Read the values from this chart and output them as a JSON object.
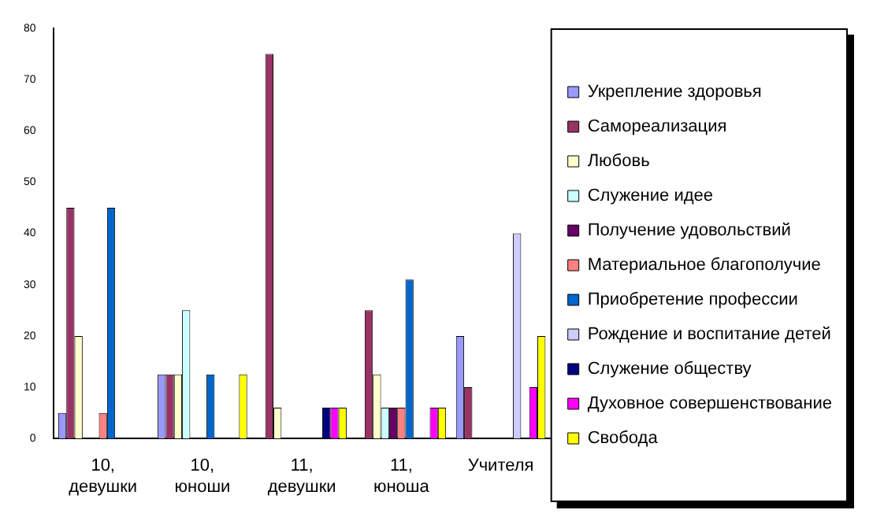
{
  "chart_data": {
    "type": "bar",
    "categories": [
      "10, девушки",
      "10, юноши",
      "11, девушки",
      "11, юноша",
      "Учителя"
    ],
    "ylim": [
      0,
      80
    ],
    "yticks": [
      0,
      10,
      20,
      30,
      40,
      50,
      60,
      70,
      80
    ],
    "grid": false,
    "legend": "right",
    "series": [
      {
        "name": "Укрепление здоровья",
        "color": "#9999ff",
        "values": [
          5,
          12.5,
          0,
          0,
          20
        ]
      },
      {
        "name": "Самореализация",
        "color": "#993366",
        "values": [
          45,
          12.5,
          75,
          25,
          10
        ]
      },
      {
        "name": "Любовь",
        "color": "#ffffcc",
        "values": [
          20,
          12.5,
          6,
          12.5,
          0
        ]
      },
      {
        "name": "Служение идее",
        "color": "#ccffff",
        "values": [
          0,
          25,
          0,
          6,
          0
        ]
      },
      {
        "name": "Получение удовольствий",
        "color": "#660066",
        "values": [
          0,
          0,
          0,
          6,
          0
        ]
      },
      {
        "name": "Материальное благополучие",
        "color": "#ff8080",
        "values": [
          5,
          0,
          0,
          6,
          0
        ]
      },
      {
        "name": "Приобретение профессии",
        "color": "#0066cc",
        "values": [
          45,
          12.5,
          0,
          31,
          0
        ]
      },
      {
        "name": "Рождение и воспитание детей",
        "color": "#ccccff",
        "values": [
          0,
          0,
          0,
          0,
          40
        ]
      },
      {
        "name": "Служение обществу",
        "color": "#000080",
        "values": [
          0,
          0,
          6,
          0,
          0
        ]
      },
      {
        "name": "Духовное совершенствование",
        "color": "#ff00ff",
        "values": [
          0,
          0,
          6,
          6,
          10
        ]
      },
      {
        "name": "Свобода",
        "color": "#ffff00",
        "values": [
          0,
          12.5,
          6,
          6,
          20
        ]
      }
    ]
  }
}
